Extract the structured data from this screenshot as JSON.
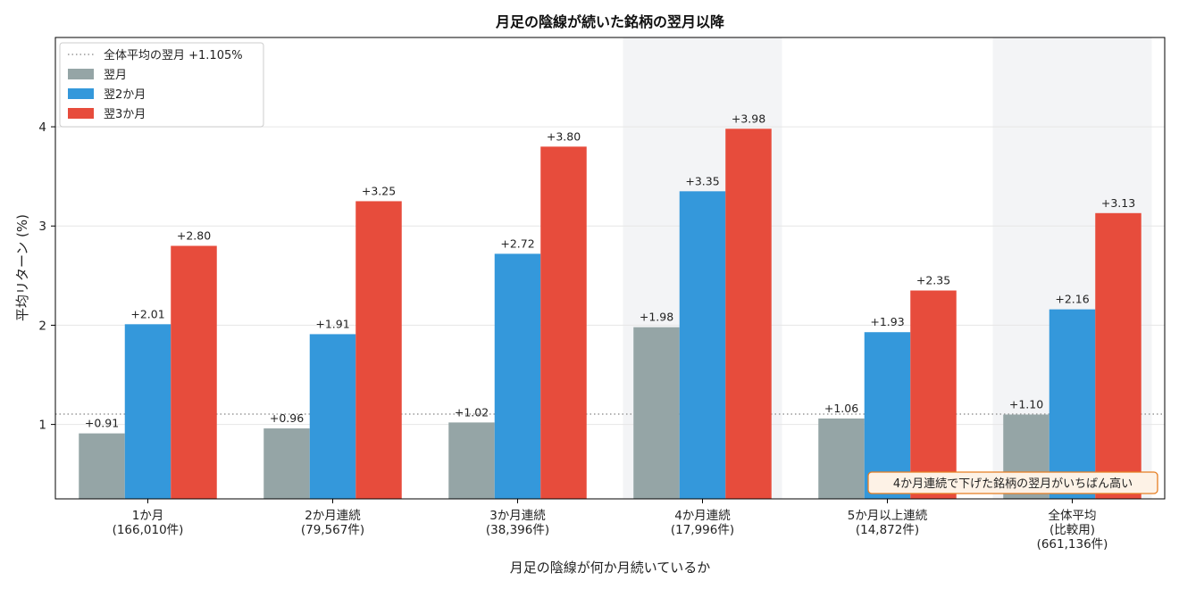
{
  "chart_data": {
    "type": "bar",
    "title": "月足の陰線が続いた銘柄の翌月以降",
    "xlabel": "月足の陰線が何か月続いているか",
    "ylabel": "平均リターン (%)",
    "ylim": [
      0.25,
      4.9
    ],
    "yticks": [
      1,
      2,
      3,
      4
    ],
    "grid": true,
    "legend_position": "top-left",
    "categories": [
      [
        "1か月",
        "(166,010件)"
      ],
      [
        "2か月連続",
        "(79,567件)"
      ],
      [
        "3か月連続",
        "(38,396件)"
      ],
      [
        "4か月連続",
        "(17,996件)"
      ],
      [
        "5か月以上連続",
        "(14,872件)"
      ],
      [
        "全体平均",
        "(比較用)",
        "(661,136件)"
      ]
    ],
    "highlighted_categories": [
      3,
      5
    ],
    "series": [
      {
        "name": "翌月",
        "color": "#95a5a6",
        "values": [
          0.91,
          0.96,
          1.02,
          1.98,
          1.06,
          1.1
        ],
        "labels": [
          "+0.91",
          "+0.96",
          "+1.02",
          "+1.98",
          "+1.06",
          "+1.10"
        ]
      },
      {
        "name": "翌2か月",
        "color": "#3498db",
        "values": [
          2.01,
          1.91,
          2.72,
          3.35,
          1.93,
          2.16
        ],
        "labels": [
          "+2.01",
          "+1.91",
          "+2.72",
          "+3.35",
          "+1.93",
          "+2.16"
        ]
      },
      {
        "name": "翌3か月",
        "color": "#e74c3c",
        "values": [
          2.8,
          3.25,
          3.8,
          3.98,
          2.35,
          3.13
        ],
        "labels": [
          "+2.80",
          "+3.25",
          "+3.80",
          "+3.98",
          "+2.35",
          "+3.13"
        ]
      }
    ],
    "reference_line": {
      "value": 1.105,
      "label": "全体平均の翌月 +1.105%",
      "color": "#999999"
    },
    "annotation": {
      "text": "4か月連続で下げた銘柄の翌月がいちばん高い",
      "border_color": "#e67e22",
      "fill_color": "#fdf2e6"
    }
  }
}
